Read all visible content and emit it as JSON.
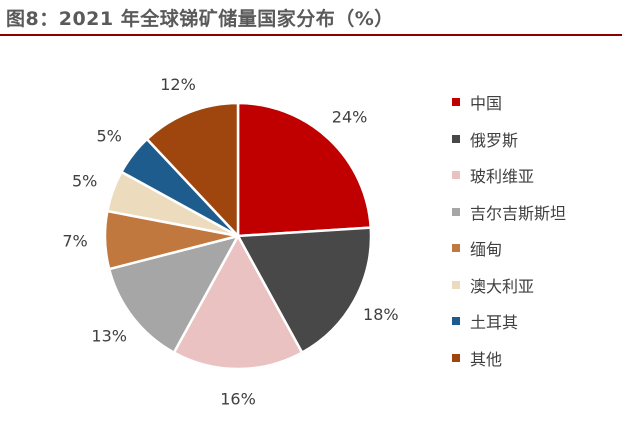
{
  "title": "图8：2021 年全球锑矿储量国家分布（%）",
  "chart_data": {
    "type": "pie",
    "title": "图8：2021 年全球锑矿储量国家分布（%）",
    "slices": [
      {
        "label": "中国",
        "value": 24,
        "display": "24%",
        "color": "#c00000"
      },
      {
        "label": "俄罗斯",
        "value": 18,
        "display": "18%",
        "color": "#484848"
      },
      {
        "label": "玻利维亚",
        "value": 16,
        "display": "16%",
        "color": "#ebc2c2"
      },
      {
        "label": "吉尔吉斯斯坦",
        "value": 13,
        "display": "13%",
        "color": "#a6a6a6"
      },
      {
        "label": "缅甸",
        "value": 7,
        "display": "7%",
        "color": "#c0783e"
      },
      {
        "label": "澳大利亚",
        "value": 5,
        "display": "5%",
        "color": "#ecdcbd"
      },
      {
        "label": "土耳其",
        "value": 5,
        "display": "5%",
        "color": "#1f5c8e"
      },
      {
        "label": "其他",
        "value": 12,
        "display": "12%",
        "color": "#9e460e"
      }
    ],
    "legend_position": "right"
  }
}
